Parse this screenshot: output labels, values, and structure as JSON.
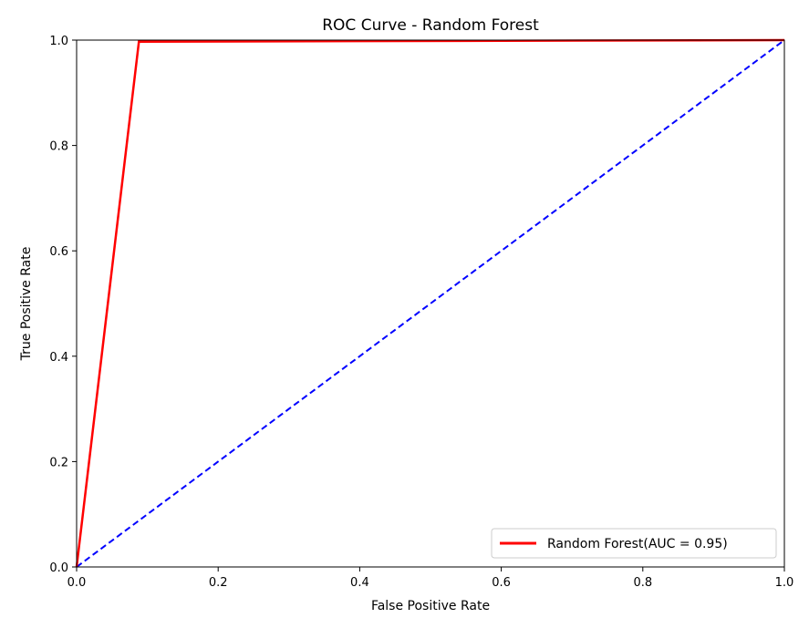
{
  "chart_data": {
    "type": "line",
    "title": "ROC Curve - Random Forest",
    "xlabel": "False Positive Rate",
    "ylabel": "True Positive Rate",
    "xlim": [
      0.0,
      1.0
    ],
    "ylim": [
      0.0,
      1.0
    ],
    "xticks": [
      "0.0",
      "0.2",
      "0.4",
      "0.6",
      "0.8",
      "1.0"
    ],
    "yticks": [
      "0.0",
      "0.2",
      "0.4",
      "0.6",
      "0.8",
      "1.0"
    ],
    "grid": false,
    "legend_position": "lower-right",
    "series": [
      {
        "name": "Random Forest(AUC = 0.95)",
        "color": "#ff0000",
        "style": "solid",
        "x": [
          0.0,
          0.088,
          1.0
        ],
        "y": [
          0.0,
          0.997,
          1.0
        ]
      },
      {
        "color": "#0000ff",
        "style": "dashed",
        "x": [
          0.0,
          1.0
        ],
        "y": [
          0.0,
          1.0
        ]
      }
    ]
  }
}
